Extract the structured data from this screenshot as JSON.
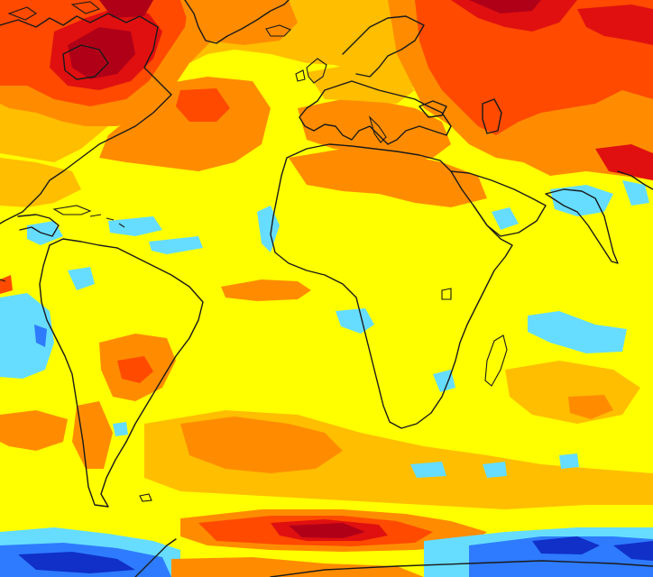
{
  "map": {
    "type": "temperature-anomaly-map",
    "projection": "equirectangular",
    "color_scale": {
      "deep_blue": "#1030c8",
      "blue": "#2e7bff",
      "cyan": "#66ddff",
      "yellow": "#ffff00",
      "light_orange": "#ffbe00",
      "orange": "#ff8c00",
      "red_orange": "#ff4a00",
      "red": "#e01010",
      "dark_red": "#b00018"
    },
    "coastline_color": "#1a1a1a",
    "regions_depicted": [
      "north-america",
      "south-america",
      "greenland",
      "europe",
      "africa",
      "arabia",
      "india",
      "madagascar",
      "antarctica"
    ]
  }
}
